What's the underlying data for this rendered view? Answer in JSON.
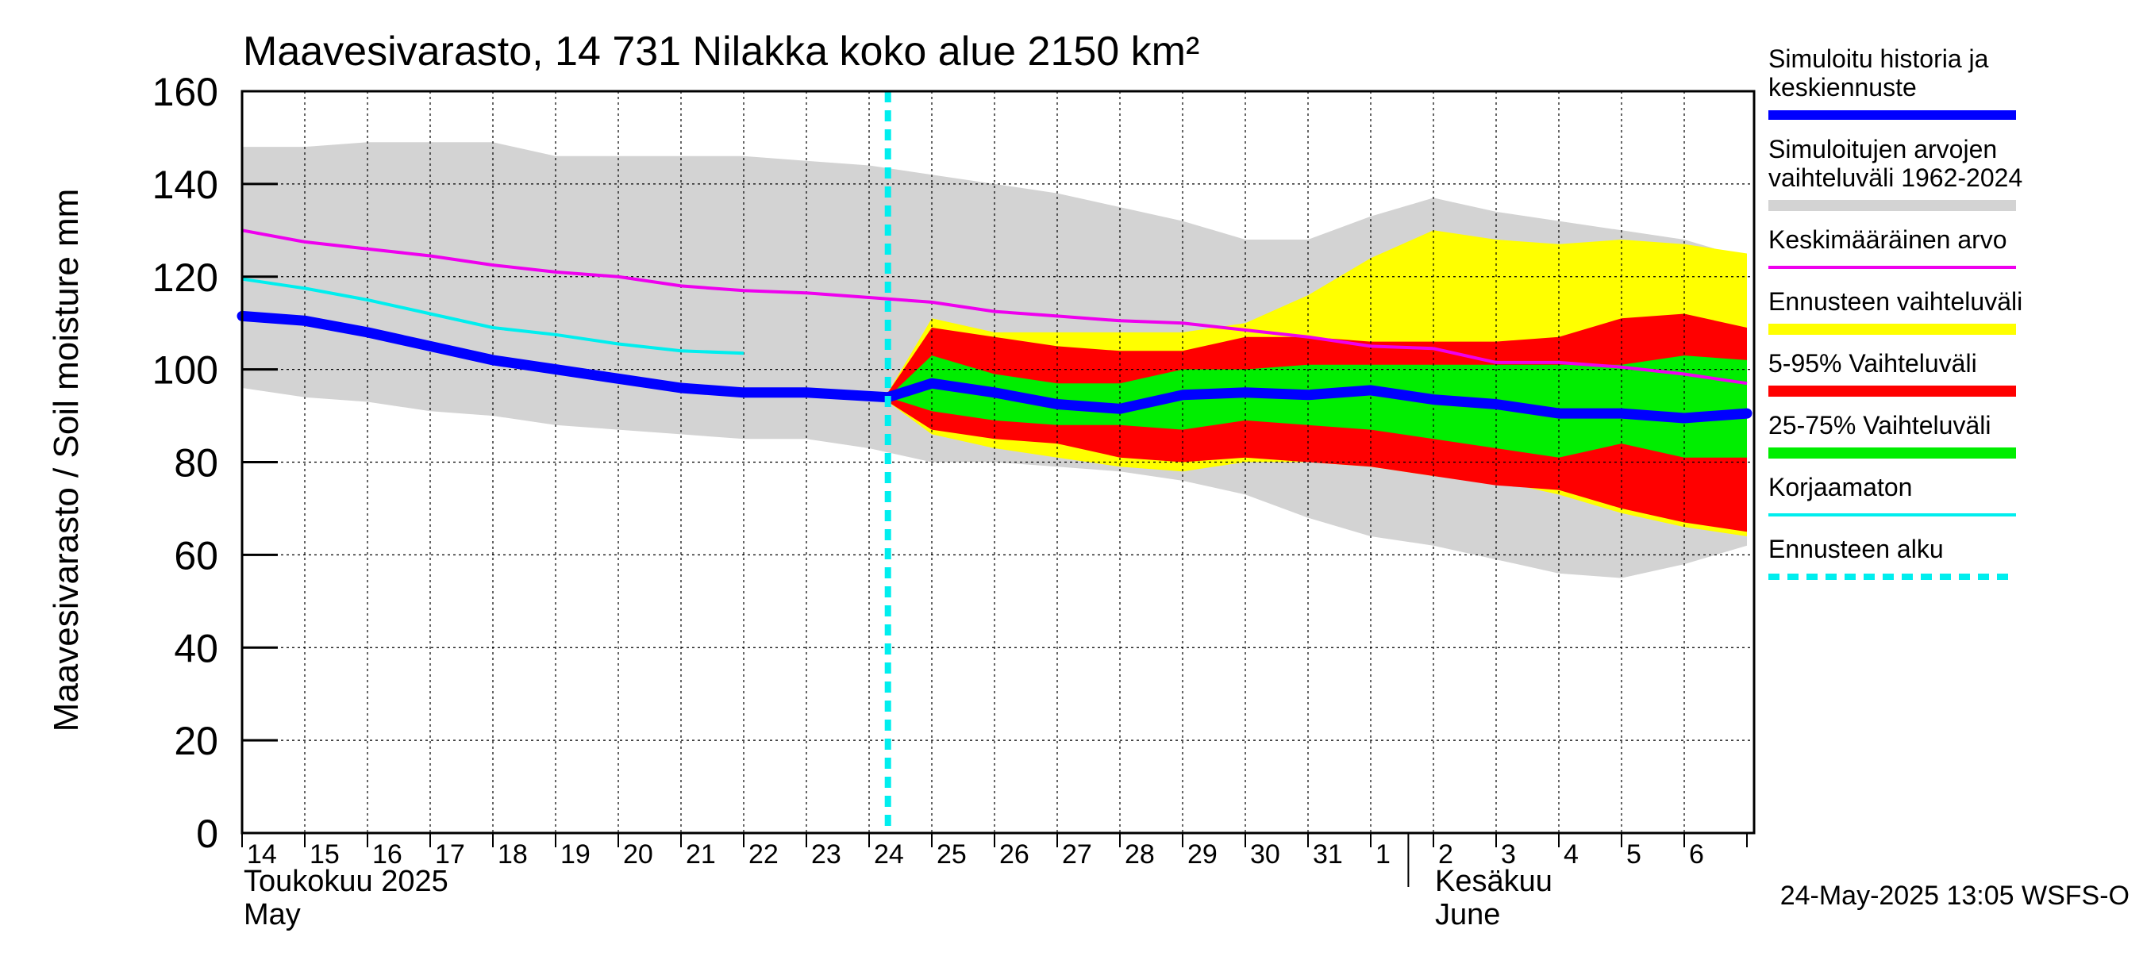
{
  "chart_data": {
    "type": "area",
    "title": "Maavesivarasto, 14 731 Nilakka koko alue 2150 km²",
    "ylabel": "Maavesivarasto / Soil moisture   mm",
    "ylim": [
      0,
      160
    ],
    "y_ticks": [
      "0",
      "20",
      "40",
      "60",
      "80",
      "100",
      "120",
      "140",
      "160"
    ],
    "grid": true,
    "legend_position": "right",
    "x_range_days": [
      0,
      24
    ],
    "day_labels": [
      "14",
      "15",
      "16",
      "17",
      "18",
      "19",
      "20",
      "21",
      "22",
      "23",
      "24",
      "25",
      "26",
      "27",
      "28",
      "29",
      "30",
      "31",
      "1",
      "2",
      "3",
      "4",
      "5",
      "6"
    ],
    "month_labels": [
      {
        "line1": "Toukokuu  2025",
        "line2": "May",
        "day": 0
      },
      {
        "line1": "Kesäkuu",
        "line2": "June",
        "day": 19
      }
    ],
    "month_divider_day": 18.6,
    "forecast_start_day": 10.3,
    "timestamp": "24-May-2025 13:05 WSFS-O",
    "colors": {
      "history": "#0000ff",
      "hist_range": "#d3d3d3",
      "mean": "#ee00ee",
      "forecast_range": "#ffff00",
      "p5_95": "#ff0000",
      "p25_75": "#00ee00",
      "uncorrected": "#00eeee",
      "forecast_start": "#00eeee"
    },
    "legend": [
      {
        "key": "history",
        "lines": [
          "Simuloitu historia ja",
          "keskiennuste"
        ],
        "style": "thick"
      },
      {
        "key": "hist_range",
        "lines": [
          "Simuloitujen arvojen",
          "vaihteluväli 1962-2024"
        ],
        "style": "band"
      },
      {
        "key": "mean",
        "lines": [
          "Keskimääräinen arvo"
        ],
        "style": "thin"
      },
      {
        "key": "forecast_range",
        "lines": [
          "Ennusteen vaihteluväli"
        ],
        "style": "band"
      },
      {
        "key": "p5_95",
        "lines": [
          "5-95% Vaihteluväli"
        ],
        "style": "band"
      },
      {
        "key": "p25_75",
        "lines": [
          "25-75% Vaihteluväli"
        ],
        "style": "band"
      },
      {
        "key": "uncorrected",
        "lines": [
          "Korjaamaton"
        ],
        "style": "thin"
      },
      {
        "key": "forecast_start",
        "lines": [
          "Ennusteen alku"
        ],
        "style": "dashed"
      }
    ],
    "series": {
      "hist_range": {
        "x": [
          0,
          1,
          2,
          3,
          4,
          5,
          6,
          7,
          8,
          9,
          10,
          11,
          12,
          13,
          14,
          15,
          16,
          17,
          18,
          19,
          20,
          21,
          22,
          23,
          24
        ],
        "upper": [
          148,
          148,
          149,
          149,
          149,
          146,
          146,
          146,
          146,
          145,
          144,
          142,
          140,
          138,
          135,
          132,
          128,
          128,
          133,
          137,
          134,
          132,
          130,
          128,
          124
        ],
        "lower": [
          96,
          94,
          93,
          91,
          90,
          88,
          87,
          86,
          85,
          85,
          83,
          80,
          80,
          79,
          78,
          76,
          73,
          68,
          64,
          62,
          59,
          56,
          55,
          58,
          62
        ]
      },
      "forecast_range": {
        "x": [
          10.3,
          11,
          12,
          13,
          14,
          15,
          16,
          17,
          18,
          19,
          20,
          21,
          22,
          23,
          24
        ],
        "upper": [
          95,
          111,
          108,
          108,
          108,
          108,
          110,
          116,
          124,
          130,
          128,
          127,
          128,
          127,
          125
        ],
        "lower": [
          93,
          86,
          83,
          81,
          79,
          78,
          80,
          80,
          79,
          77,
          76,
          73,
          69,
          66,
          64
        ]
      },
      "p5_95": {
        "x": [
          10.3,
          11,
          12,
          13,
          14,
          15,
          16,
          17,
          18,
          19,
          20,
          21,
          22,
          23,
          24
        ],
        "upper": [
          95,
          109,
          107,
          105,
          104,
          104,
          107,
          107,
          106,
          106,
          106,
          107,
          111,
          112,
          109
        ],
        "lower": [
          93,
          87,
          85,
          84,
          81,
          80,
          81,
          80,
          79,
          77,
          75,
          74,
          70,
          67,
          65
        ]
      },
      "p25_75": {
        "x": [
          10.3,
          11,
          12,
          13,
          14,
          15,
          16,
          17,
          18,
          19,
          20,
          21,
          22,
          23,
          24
        ],
        "upper": [
          94,
          103,
          99,
          97,
          97,
          100,
          100,
          101,
          101,
          101,
          101,
          101,
          101,
          103,
          102
        ],
        "lower": [
          94,
          91,
          89,
          88,
          88,
          87,
          89,
          88,
          87,
          85,
          83,
          81,
          84,
          81,
          81
        ]
      },
      "history": {
        "x": [
          0,
          1,
          2,
          3,
          4,
          5,
          6,
          7,
          8,
          9,
          10.3,
          11,
          12,
          13,
          14,
          15,
          16,
          17,
          18,
          19,
          20,
          21,
          22,
          23,
          24
        ],
        "y": [
          111.5,
          110.5,
          108,
          105,
          102,
          100,
          98,
          96,
          95,
          95,
          94,
          97,
          95,
          92.5,
          91.5,
          94.5,
          95,
          94.5,
          95.5,
          93.5,
          92.5,
          90.5,
          90.5,
          89.5,
          90.5
        ]
      },
      "mean": {
        "x": [
          0,
          1,
          2,
          3,
          4,
          5,
          6,
          7,
          8,
          9,
          10,
          11,
          12,
          13,
          14,
          15,
          16,
          17,
          18,
          19,
          20,
          21,
          22,
          23,
          24
        ],
        "y": [
          130,
          127.5,
          126,
          124.5,
          122.5,
          121,
          120,
          118,
          117,
          116.5,
          115.5,
          114.5,
          112.5,
          111.5,
          110.5,
          110,
          108.5,
          107,
          105,
          104.5,
          101.5,
          101.5,
          100.5,
          99,
          97
        ]
      },
      "uncorrected": {
        "x": [
          0,
          1,
          2,
          3,
          4,
          5,
          6,
          7,
          8
        ],
        "y": [
          119.5,
          117.5,
          115,
          112,
          109,
          107.5,
          105.5,
          104,
          103.5
        ]
      }
    }
  }
}
